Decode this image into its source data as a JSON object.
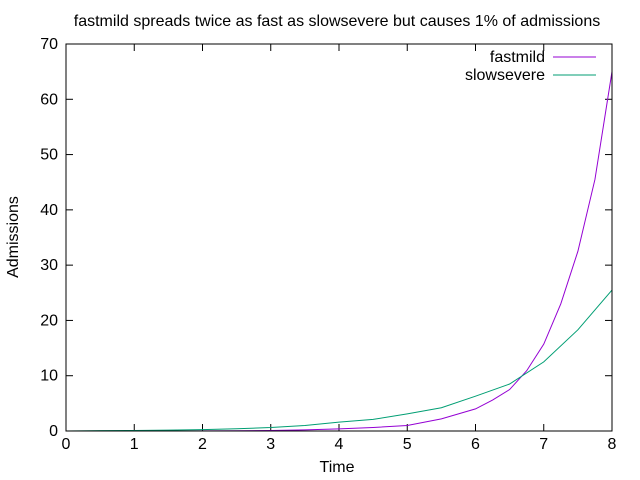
{
  "chart_data": {
    "type": "line",
    "title": "fastmild spreads twice as fast as slowsevere but causes 1% of admissions",
    "xlabel": "Time",
    "ylabel": "Admissions",
    "xlim": [
      0,
      8
    ],
    "ylim": [
      0,
      70
    ],
    "x_ticks": [
      0,
      1,
      2,
      3,
      4,
      5,
      6,
      7,
      8
    ],
    "y_ticks": [
      0,
      10,
      20,
      30,
      40,
      50,
      60,
      70
    ],
    "grid": false,
    "legend_position": "top-right",
    "series": [
      {
        "name": "fastmild",
        "color": "#9400d3",
        "x": [
          0,
          0.5,
          1,
          1.5,
          2,
          2.5,
          3,
          3.5,
          4,
          4.5,
          5,
          5.5,
          6,
          6.25,
          6.5,
          6.75,
          7,
          7.25,
          7.5,
          7.75,
          8
        ],
        "y": [
          0.0,
          0.0,
          0.0,
          0.01,
          0.02,
          0.05,
          0.1,
          0.2,
          0.38,
          0.64,
          1.0,
          2.2,
          4.0,
          5.6,
          7.5,
          10.9,
          15.7,
          23.0,
          32.5,
          45.5,
          65.0
        ]
      },
      {
        "name": "slowsevere",
        "color": "#009e73",
        "x": [
          0,
          0.5,
          1,
          1.5,
          2,
          2.5,
          3,
          3.5,
          4,
          4.5,
          5,
          5.5,
          6,
          6.5,
          7,
          7.5,
          8
        ],
        "y": [
          0.0,
          0.06,
          0.1,
          0.16,
          0.25,
          0.4,
          0.63,
          1.0,
          1.6,
          2.1,
          3.1,
          4.2,
          6.3,
          8.5,
          12.5,
          18.3,
          25.5
        ]
      }
    ]
  }
}
